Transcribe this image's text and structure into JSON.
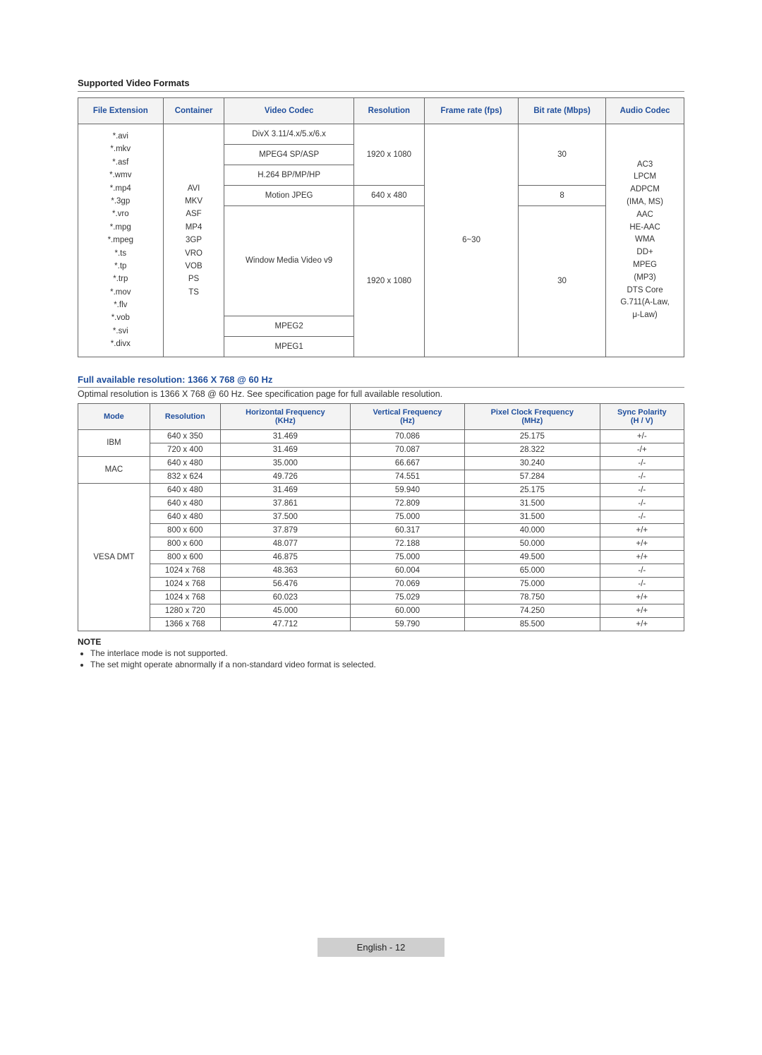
{
  "section1": {
    "title": "Supported Video Formats"
  },
  "videoTable": {
    "headers": [
      "File Extension",
      "Container",
      "Video Codec",
      "Resolution",
      "Frame rate (fps)",
      "Bit rate (Mbps)",
      "Audio Codec"
    ],
    "fileExtensions": "*.avi\n*.mkv\n*.asf\n*.wmv\n*.mp4\n*.3gp\n*.vro\n*.mpg\n*.mpeg\n*.ts\n*.tp\n*.trp\n*.mov\n*.flv\n*.vob\n*.svi\n*.divx",
    "container": "AVI\nMKV\nASF\nMP4\n3GP\nVRO\nVOB\nPS\nTS",
    "codecs": [
      "DivX 3.11/4.x/5.x/6.x",
      "MPEG4 SP/ASP",
      "H.264 BP/MP/HP",
      "Motion JPEG",
      "Window Media Video v9",
      "MPEG2",
      "MPEG1"
    ],
    "res_1080": "1920 x 1080",
    "res_480": "640 x 480",
    "framerate": "6~30",
    "bitrate30": "30",
    "bitrate8": "8",
    "audioCodec": "AC3\nLPCM\nADPCM\n(IMA, MS)\nAAC\nHE-AAC\nWMA\nDD+\nMPEG\n(MP3)\nDTS Core\nG.711(A-Law,\nμ-Law)"
  },
  "section2": {
    "title": "Full available resolution: 1366 X 768 @ 60 Hz",
    "subtitle": "Optimal resolution is 1366 X 768 @ 60 Hz. See specification page for full available resolution."
  },
  "timingTable": {
    "headers": [
      "Mode",
      "Resolution",
      "Horizontal Frequency\n(KHz)",
      "Vertical Frequency\n(Hz)",
      "Pixel Clock Frequency\n(MHz)",
      "Sync Polarity\n(H / V)"
    ],
    "groups": [
      {
        "mode": "IBM",
        "rows": [
          [
            "640 x 350",
            "31.469",
            "70.086",
            "25.175",
            "+/-"
          ],
          [
            "720 x 400",
            "31.469",
            "70.087",
            "28.322",
            "-/+"
          ]
        ]
      },
      {
        "mode": "MAC",
        "rows": [
          [
            "640 x 480",
            "35.000",
            "66.667",
            "30.240",
            "-/-"
          ],
          [
            "832 x 624",
            "49.726",
            "74.551",
            "57.284",
            "-/-"
          ]
        ]
      },
      {
        "mode": "VESA DMT",
        "rows": [
          [
            "640 x 480",
            "31.469",
            "59.940",
            "25.175",
            "-/-"
          ],
          [
            "640 x 480",
            "37.861",
            "72.809",
            "31.500",
            "-/-"
          ],
          [
            "640 x 480",
            "37.500",
            "75.000",
            "31.500",
            "-/-"
          ],
          [
            "800 x 600",
            "37.879",
            "60.317",
            "40.000",
            "+/+"
          ],
          [
            "800 x 600",
            "48.077",
            "72.188",
            "50.000",
            "+/+"
          ],
          [
            "800 x 600",
            "46.875",
            "75.000",
            "49.500",
            "+/+"
          ],
          [
            "1024 x 768",
            "48.363",
            "60.004",
            "65.000",
            "-/-"
          ],
          [
            "1024 x 768",
            "56.476",
            "70.069",
            "75.000",
            "-/-"
          ],
          [
            "1024 x 768",
            "60.023",
            "75.029",
            "78.750",
            "+/+"
          ],
          [
            "1280 x 720",
            "45.000",
            "60.000",
            "74.250",
            "+/+"
          ],
          [
            "1366 x 768",
            "47.712",
            "59.790",
            "85.500",
            "+/+"
          ]
        ]
      }
    ]
  },
  "notes": {
    "heading": "NOTE",
    "items": [
      "The interlace mode is not supported.",
      "The set might operate abnormally if a non-standard video format is selected."
    ]
  },
  "footer": "English - 12"
}
